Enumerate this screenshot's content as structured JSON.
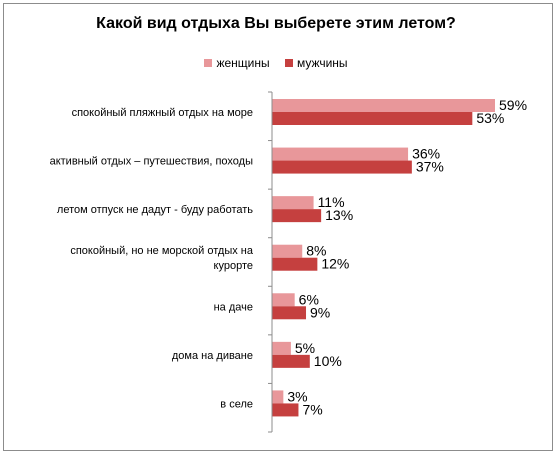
{
  "chart_data": {
    "type": "bar",
    "orientation": "horizontal",
    "title": "Какой вид отдыха Вы выберете этим летом?",
    "categories": [
      [
        "спокойный пляжный  отдых на море"
      ],
      [
        "активный отдых – путешествия, походы"
      ],
      [
        "летом отпуск  не дадут - буду  работать"
      ],
      [
        "спокойный, но не морской отдых на",
        "курорте"
      ],
      [
        "на даче"
      ],
      [
        "дома на диване"
      ],
      [
        "в селе"
      ]
    ],
    "series": [
      {
        "name": "женщины",
        "color": "#e8979a",
        "values": [
          59,
          36,
          11,
          8,
          6,
          5,
          3
        ]
      },
      {
        "name": "мужчины",
        "color": "#c5403f",
        "values": [
          53,
          37,
          13,
          12,
          9,
          10,
          7
        ]
      }
    ],
    "value_suffix": "%",
    "xlim": [
      0,
      59
    ],
    "legend_position": "top",
    "grid": false
  }
}
